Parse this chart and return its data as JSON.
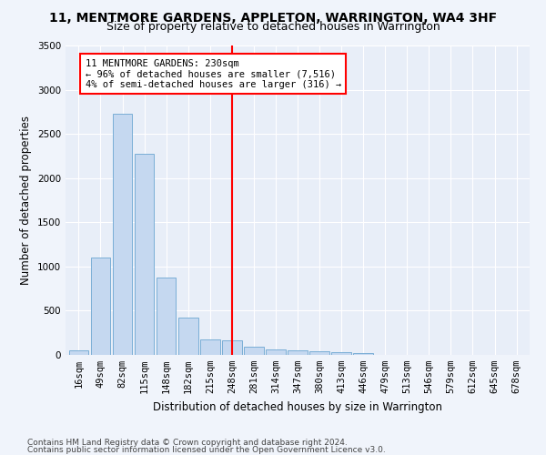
{
  "title": "11, MENTMORE GARDENS, APPLETON, WARRINGTON, WA4 3HF",
  "subtitle": "Size of property relative to detached houses in Warrington",
  "xlabel": "Distribution of detached houses by size in Warrington",
  "ylabel": "Number of detached properties",
  "footnote1": "Contains HM Land Registry data © Crown copyright and database right 2024.",
  "footnote2": "Contains public sector information licensed under the Open Government Licence v3.0.",
  "bin_labels": [
    "16sqm",
    "49sqm",
    "82sqm",
    "115sqm",
    "148sqm",
    "182sqm",
    "215sqm",
    "248sqm",
    "281sqm",
    "314sqm",
    "347sqm",
    "380sqm",
    "413sqm",
    "446sqm",
    "479sqm",
    "513sqm",
    "546sqm",
    "579sqm",
    "612sqm",
    "645sqm",
    "678sqm"
  ],
  "bar_values": [
    55,
    1100,
    2730,
    2280,
    880,
    420,
    170,
    165,
    95,
    65,
    50,
    40,
    30,
    25,
    0,
    0,
    0,
    0,
    0,
    0,
    0
  ],
  "bar_color": "#c5d8f0",
  "bar_edge_color": "#7aaed6",
  "vline_x": 7,
  "vline_color": "red",
  "annotation_text": "11 MENTMORE GARDENS: 230sqm\n← 96% of detached houses are smaller (7,516)\n4% of semi-detached houses are larger (316) →",
  "annotation_box_color": "white",
  "annotation_box_edge_color": "red",
  "ylim": [
    0,
    3500
  ],
  "yticks": [
    0,
    500,
    1000,
    1500,
    2000,
    2500,
    3000,
    3500
  ],
  "fig_bg_color": "#f0f4fb",
  "ax_bg_color": "#e8eef8",
  "grid_color": "#ffffff",
  "title_fontsize": 10,
  "subtitle_fontsize": 9,
  "axis_label_fontsize": 8.5,
  "tick_fontsize": 7.5,
  "annotation_fontsize": 7.5,
  "footnote_fontsize": 6.5
}
